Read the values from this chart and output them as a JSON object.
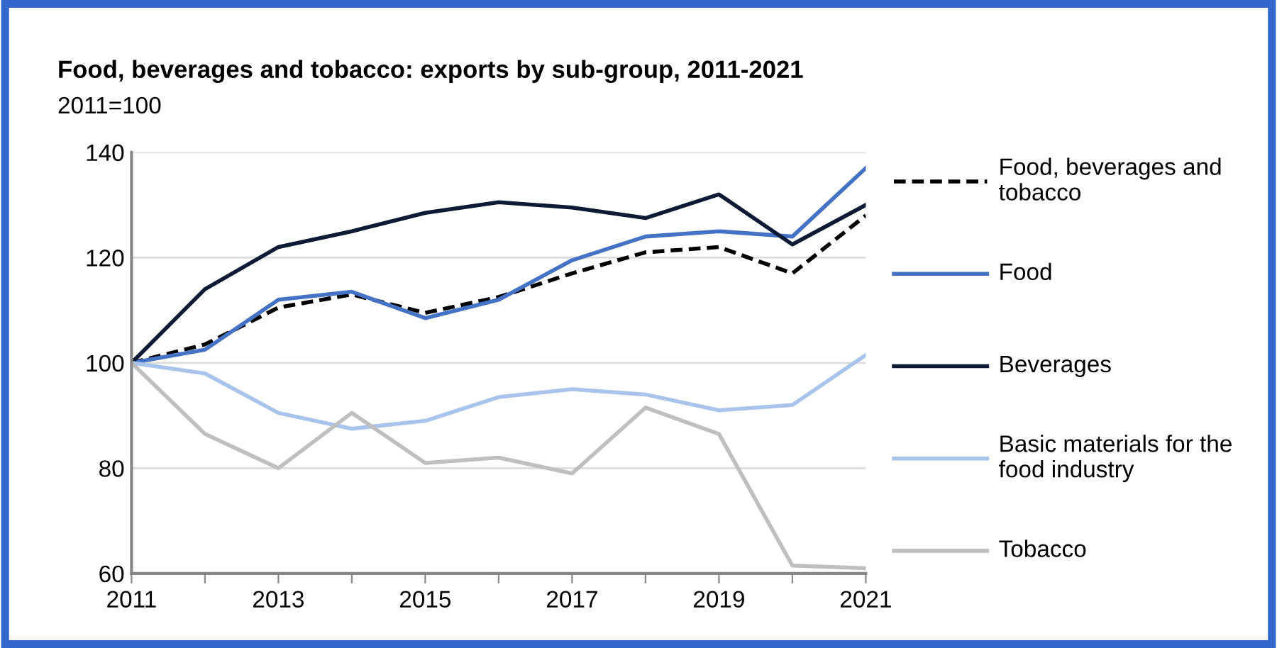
{
  "chart_data": {
    "type": "line",
    "title": "Food, beverages and tobacco: exports by sub-group, 2011-2021",
    "subtitle": "2011=100",
    "x": [
      2011,
      2012,
      2013,
      2014,
      2015,
      2016,
      2017,
      2018,
      2019,
      2020,
      2021
    ],
    "series": [
      {
        "name": "Food, beverages and tobacco",
        "color": "#000000",
        "line_style": "dashed",
        "values": [
          100,
          103.5,
          110.5,
          113,
          109.5,
          112.5,
          117,
          121,
          122,
          117,
          128
        ]
      },
      {
        "name": "Food",
        "color": "#4472c4",
        "values": [
          100,
          102.5,
          112,
          113.5,
          108.5,
          112,
          119.5,
          124,
          125,
          124,
          137
        ]
      },
      {
        "name": "Beverages",
        "color": "#0d1a33",
        "values": [
          100,
          114,
          122,
          125,
          128.5,
          130.5,
          129.5,
          127.5,
          132,
          122.5,
          130
        ]
      },
      {
        "name": "Basic materials for the food industry",
        "color": "#a9c4eb",
        "values": [
          100,
          98,
          90.5,
          87.5,
          89,
          93.5,
          95,
          94,
          91,
          92,
          101.5
        ]
      },
      {
        "name": "Tobacco",
        "color": "#bfbfbf",
        "values": [
          100,
          86.5,
          80,
          90.5,
          81,
          82,
          79,
          91.5,
          86.5,
          61.5,
          61
        ]
      }
    ],
    "xlim": [
      2011,
      2021
    ],
    "xticks": [
      2011,
      {
        "value": 2012,
        "label": null
      },
      2013,
      {
        "value": 2014,
        "label": null
      },
      2015,
      {
        "value": 2016,
        "label": null
      },
      2017,
      {
        "value": 2018,
        "label": null
      },
      2019,
      {
        "value": 2020,
        "label": null
      },
      2021
    ],
    "ylim": [
      60,
      140
    ],
    "yticks": [
      60,
      80,
      100,
      120,
      140
    ],
    "grid": "y",
    "legend": "right",
    "marker": "none",
    "line_style": "solid"
  }
}
